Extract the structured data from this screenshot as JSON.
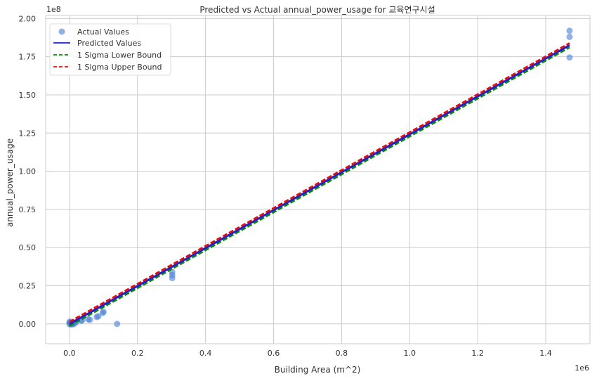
{
  "chart_data": {
    "type": "scatter",
    "title": "Predicted vs Actual annual_power_usage for 교육연구시설",
    "xlabel": "Building Area (m^2)",
    "ylabel": "annual_power_usage",
    "x_offset_label": "1e6",
    "y_offset_label": "1e8",
    "x_scale": 1000000,
    "y_scale": 100000000,
    "xlim": [
      -0.07,
      1.53
    ],
    "ylim": [
      -0.13,
      2.02
    ],
    "xticks": [
      0.0,
      0.2,
      0.4,
      0.6,
      0.8,
      1.0,
      1.2,
      1.4
    ],
    "xtick_labels": [
      "0.0",
      "0.2",
      "0.4",
      "0.6",
      "0.8",
      "1.0",
      "1.2",
      "1.4"
    ],
    "yticks": [
      0.0,
      0.25,
      0.5,
      0.75,
      1.0,
      1.25,
      1.5,
      1.75,
      2.0
    ],
    "ytick_labels": [
      "0.00",
      "0.25",
      "0.50",
      "0.75",
      "1.00",
      "1.25",
      "1.50",
      "1.75",
      "2.00"
    ],
    "grid": true,
    "legend_position": "top-left",
    "series": [
      {
        "name": "Actual Values",
        "kind": "scatter",
        "color": "#4a7fd6",
        "points": [
          [
            0.0,
            0.0
          ],
          [
            0.0,
            0.01
          ],
          [
            0.002,
            0.015
          ],
          [
            0.004,
            -0.005
          ],
          [
            0.006,
            0.005
          ],
          [
            0.008,
            0.0
          ],
          [
            0.01,
            0.01
          ],
          [
            0.012,
            -0.002
          ],
          [
            0.015,
            0.005
          ],
          [
            0.02,
            0.012
          ],
          [
            0.035,
            0.02
          ],
          [
            0.037,
            0.025
          ],
          [
            0.055,
            0.03
          ],
          [
            0.06,
            0.027
          ],
          [
            0.08,
            0.045
          ],
          [
            0.085,
            0.05
          ],
          [
            0.1,
            0.08
          ],
          [
            0.098,
            0.072
          ],
          [
            0.14,
            0.0
          ],
          [
            0.302,
            0.34
          ],
          [
            0.302,
            0.32
          ],
          [
            0.302,
            0.3
          ],
          [
            1.47,
            1.92
          ],
          [
            1.47,
            1.88
          ],
          [
            1.47,
            1.745
          ]
        ]
      },
      {
        "name": "Predicted Values",
        "kind": "line",
        "color": "#1f1fd6",
        "dash": "solid",
        "points": [
          [
            0.0,
            0.0
          ],
          [
            1.47,
            1.825
          ]
        ]
      },
      {
        "name": "1 Sigma Lower Bound",
        "kind": "line",
        "color": "#0a8a0a",
        "dash": "dashed",
        "points": [
          [
            0.0,
            -0.013
          ],
          [
            1.47,
            1.812
          ]
        ]
      },
      {
        "name": "1 Sigma Upper Bound",
        "kind": "line",
        "color": "#e01010",
        "dash": "dashed",
        "points": [
          [
            0.0,
            0.013
          ],
          [
            1.47,
            1.838
          ]
        ]
      }
    ]
  }
}
